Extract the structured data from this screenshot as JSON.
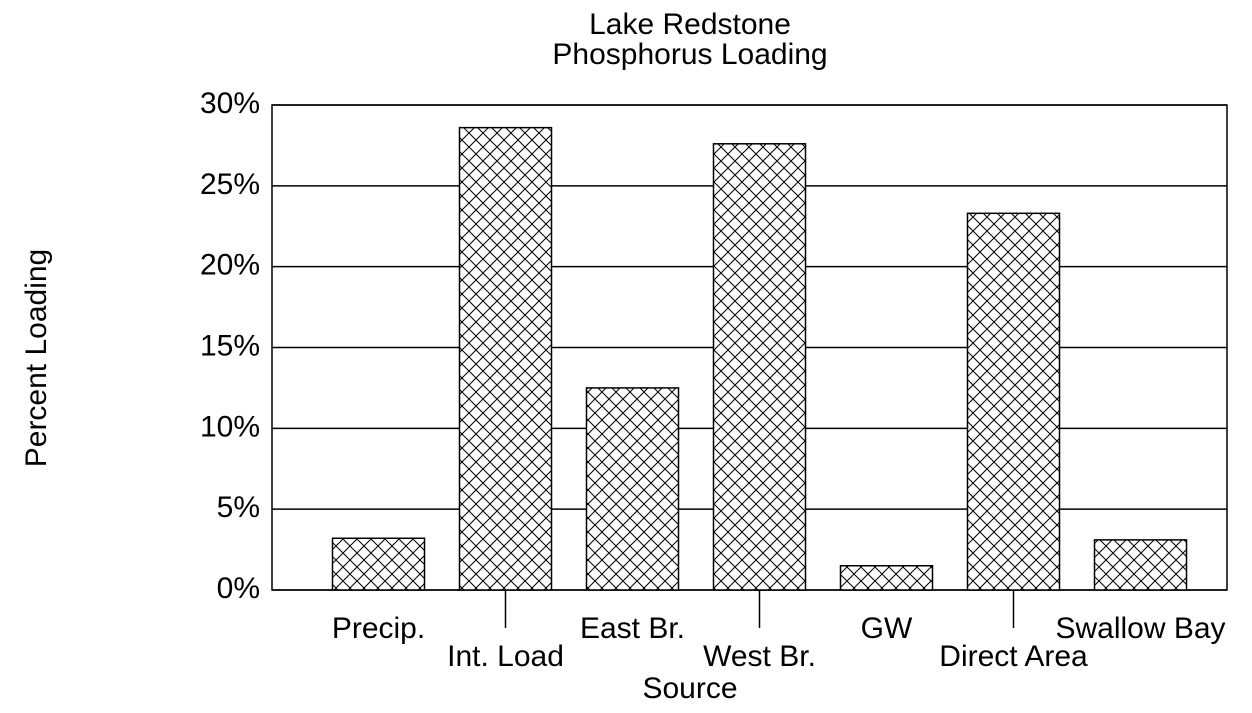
{
  "chart_data": {
    "type": "bar",
    "title": "Lake Redstone",
    "subtitle": "Phosphorus Loading",
    "x_label": "Source",
    "y_label": "Percent Loading",
    "categories": [
      "Precip.",
      "Int. Load",
      "East Br.",
      "West Br.",
      "GW",
      "Direct Area",
      "Swallow Bay"
    ],
    "values": [
      3.2,
      28.6,
      12.5,
      27.6,
      1.5,
      23.3,
      3.1
    ],
    "color": "#000000",
    "ylim": [
      0,
      30
    ],
    "yticks": [
      {
        "value": 0,
        "label": "0%"
      },
      {
        "value": 5,
        "label": "5%"
      },
      {
        "value": 10,
        "label": "10%"
      },
      {
        "value": 15,
        "label": "15%"
      },
      {
        "value": 20,
        "label": "20%"
      },
      {
        "value": 25,
        "label": "25%"
      },
      {
        "value": 30,
        "label": "30%"
      }
    ],
    "grid": true
  }
}
